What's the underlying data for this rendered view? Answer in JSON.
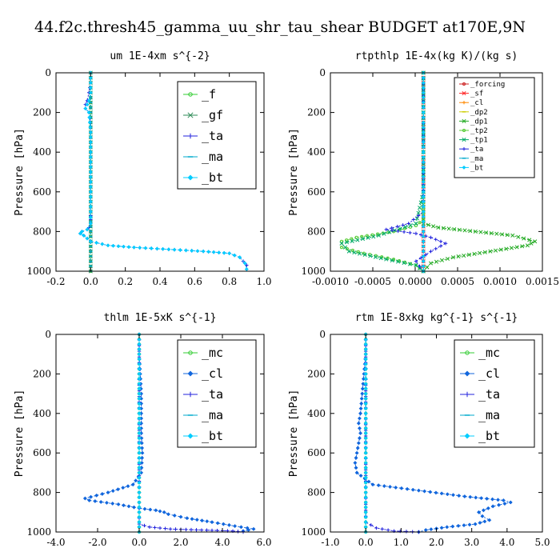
{
  "figure": {
    "title": "44.f2c.thresh45_gamma_uu_shr_tau_shear  BUDGET at170E,9N"
  },
  "chart_data": [
    {
      "type": "line",
      "title": "um   1E-4xm s^{-2}",
      "ylabel": "Pressure [hPa]",
      "xlim": [
        -0.2,
        1.0
      ],
      "ylim": [
        1000,
        0
      ],
      "xticks": [
        "-0.2",
        "0.0",
        "0.2",
        "0.4",
        "0.6",
        "0.8",
        "1.0"
      ],
      "yticks": [
        "0",
        "200",
        "400",
        "600",
        "800",
        "1000"
      ],
      "legend_small": false,
      "series": [
        {
          "name": "_f",
          "color": "#33cc33",
          "marker": "circle",
          "x": [
            0,
            0,
            0,
            0,
            0,
            0,
            0,
            0,
            0,
            0,
            0
          ],
          "y": [
            0,
            100,
            200,
            300,
            400,
            500,
            600,
            700,
            800,
            900,
            1000
          ]
        },
        {
          "name": "_gf",
          "color": "#2e8b57",
          "marker": "x",
          "x": [
            0,
            0,
            0,
            0,
            0,
            0,
            0,
            0,
            0,
            0,
            0
          ],
          "y": [
            0,
            100,
            200,
            300,
            400,
            500,
            600,
            700,
            800,
            900,
            1000
          ]
        },
        {
          "name": "_ta",
          "color": "#2222dd",
          "marker": "plus",
          "x": [
            0,
            0,
            -0.01,
            -0.02,
            -0.03,
            -0.03,
            -0.01,
            0,
            0,
            0,
            0,
            0,
            0,
            0,
            0,
            0,
            0,
            -0.01,
            -0.02,
            -0.05,
            -0.06,
            -0.04,
            0,
            0.1,
            0.25,
            0.45,
            0.65,
            0.8,
            0.86,
            0.88,
            0.9,
            0.9
          ],
          "y": [
            0,
            50,
            100,
            140,
            160,
            180,
            200,
            250,
            300,
            400,
            500,
            600,
            650,
            700,
            720,
            740,
            760,
            780,
            790,
            800,
            810,
            820,
            850,
            870,
            880,
            890,
            900,
            910,
            930,
            950,
            970,
            990
          ]
        },
        {
          "name": "_ma",
          "color": "#00aacc",
          "marker": "dash",
          "x": [
            0,
            0,
            0,
            0,
            0,
            0,
            0,
            0,
            0,
            0,
            0
          ],
          "y": [
            0,
            100,
            200,
            300,
            400,
            500,
            600,
            700,
            800,
            900,
            1000
          ]
        },
        {
          "name": "_bt",
          "color": "#00ccff",
          "marker": "diamond",
          "x": [
            0,
            0,
            0,
            -0.01,
            -0.02,
            -0.03,
            -0.01,
            0,
            0,
            0,
            0,
            0,
            0,
            -0.02,
            -0.05,
            -0.06,
            -0.04,
            0,
            0.1,
            0.25,
            0.45,
            0.65,
            0.8,
            0.86,
            0.89,
            0.9
          ],
          "y": [
            0,
            50,
            100,
            140,
            160,
            180,
            200,
            300,
            400,
            500,
            600,
            700,
            760,
            790,
            800,
            810,
            820,
            850,
            870,
            880,
            890,
            900,
            910,
            930,
            960,
            990
          ]
        }
      ]
    },
    {
      "type": "line",
      "title": "rtpthlp   1E-4x(kg K)/(kg s)",
      "ylabel": "Pressure [hPa]",
      "xlim": [
        -0.00125,
        0.0016
      ],
      "ylim": [
        1000,
        0
      ],
      "xticks": [
        "-0.0010",
        "-0.0005",
        "0.0000",
        "0.0005",
        "0.0010",
        "0.0015"
      ],
      "yticks": [
        "0",
        "200",
        "400",
        "600",
        "800",
        "1000"
      ],
      "legend_small": true,
      "series": [
        {
          "name": "_forcing",
          "color": "#cc2222",
          "marker": "circle",
          "x": [
            0,
            0,
            0,
            0,
            0,
            0,
            0,
            0,
            0,
            0,
            0
          ],
          "y": [
            0,
            100,
            200,
            300,
            400,
            500,
            600,
            700,
            800,
            900,
            1000
          ]
        },
        {
          "name": "_sf",
          "color": "#ff2222",
          "marker": "x",
          "x": [
            0,
            0,
            0,
            0,
            0,
            0,
            0,
            0,
            0,
            0,
            0
          ],
          "y": [
            0,
            100,
            200,
            300,
            400,
            500,
            600,
            700,
            800,
            900,
            1000
          ]
        },
        {
          "name": "_cl",
          "color": "#ff8800",
          "marker": "plus",
          "x": [
            0,
            0,
            0,
            0,
            0,
            0,
            0,
            0,
            0,
            0,
            0
          ],
          "y": [
            0,
            100,
            200,
            300,
            400,
            500,
            600,
            700,
            800,
            900,
            1000
          ]
        },
        {
          "name": "_dp2",
          "color": "#cccc00",
          "marker": "dash",
          "x": [
            0,
            0,
            0,
            0,
            0,
            0,
            0,
            0,
            0,
            0,
            0
          ],
          "y": [
            0,
            100,
            200,
            300,
            400,
            500,
            600,
            700,
            800,
            900,
            1000
          ]
        },
        {
          "name": "_dp1",
          "color": "#22aa22",
          "marker": "x",
          "x": [
            0,
            0,
            0,
            0,
            0,
            0,
            0,
            0.0002,
            0.0007,
            0.0012,
            0.0015,
            0.0014,
            0.0009,
            0.0004,
            0.0001,
            0
          ],
          "y": [
            0,
            200,
            400,
            600,
            700,
            740,
            760,
            780,
            800,
            820,
            850,
            870,
            900,
            930,
            960,
            1000
          ]
        },
        {
          "name": "_tp2",
          "color": "#55cc33",
          "marker": "circle",
          "x": [
            0,
            0,
            0,
            0,
            0,
            -0.0001,
            -0.0004,
            -0.0009,
            -0.0011,
            -0.0011,
            -0.0008,
            -0.0004,
            -0.0001,
            0
          ],
          "y": [
            0,
            200,
            400,
            600,
            740,
            770,
            800,
            830,
            850,
            880,
            910,
            940,
            970,
            1000
          ]
        },
        {
          "name": "_tp1",
          "color": "#00aa66",
          "marker": "x",
          "x": [
            0,
            0,
            0,
            0,
            -0.0001,
            -0.0006,
            -0.0011,
            -0.001,
            -0.0005,
            -0.0001,
            0
          ],
          "y": [
            0,
            200,
            400,
            600,
            760,
            820,
            860,
            900,
            940,
            970,
            1000
          ]
        },
        {
          "name": "_ta",
          "color": "#2222dd",
          "marker": "plus",
          "x": [
            0,
            0,
            0,
            0,
            -0.0002,
            -0.0005,
            -0.0001,
            0.0001,
            0.0003,
            0.0001,
            -0.0001,
            0
          ],
          "y": [
            0,
            200,
            400,
            700,
            760,
            790,
            810,
            830,
            860,
            900,
            950,
            1000
          ]
        },
        {
          "name": "_ma",
          "color": "#00aacc",
          "marker": "dash",
          "x": [
            0,
            0,
            0,
            0,
            0,
            0,
            0,
            0,
            0,
            0,
            0
          ],
          "y": [
            0,
            100,
            200,
            300,
            400,
            500,
            600,
            700,
            800,
            900,
            1000
          ]
        },
        {
          "name": "_bt",
          "color": "#00ccff",
          "marker": "diamond",
          "x": [
            0,
            0,
            0,
            0,
            0,
            0,
            0,
            0,
            0,
            0,
            0
          ],
          "y": [
            0,
            100,
            200,
            300,
            400,
            500,
            600,
            700,
            800,
            900,
            1000
          ]
        }
      ]
    },
    {
      "type": "line",
      "title": "thlm   1E-5xK s^{-1}",
      "ylabel": "Pressure [hPa]",
      "xlim": [
        -4.0,
        6.0
      ],
      "ylim": [
        1000,
        0
      ],
      "xticks": [
        "-4.0",
        "-2.0",
        "0.0",
        "2.0",
        "4.0",
        "6.0"
      ],
      "yticks": [
        "0",
        "200",
        "400",
        "600",
        "800",
        "1000"
      ],
      "legend_small": false,
      "series": [
        {
          "name": "_mc",
          "color": "#33cc33",
          "marker": "circle",
          "x": [
            0,
            0,
            0,
            0,
            0,
            0,
            0,
            0,
            0,
            0,
            0
          ],
          "y": [
            0,
            100,
            200,
            300,
            400,
            500,
            600,
            700,
            800,
            900,
            1000
          ]
        },
        {
          "name": "_cl",
          "color": "#1166dd",
          "marker": "diamond",
          "x": [
            0,
            0,
            0.05,
            0.1,
            0.1,
            0.1,
            0.15,
            0.1,
            -0.3,
            -1.5,
            -2.6,
            -2.4,
            -1.0,
            0,
            0.8,
            1.2,
            1.4,
            2.3,
            3.5,
            4.6,
            5.5,
            5.0
          ],
          "y": [
            0,
            100,
            200,
            300,
            400,
            500,
            600,
            700,
            760,
            800,
            830,
            840,
            860,
            880,
            890,
            900,
            910,
            930,
            950,
            970,
            985,
            995
          ]
        },
        {
          "name": "_ta",
          "color": "#2222dd",
          "marker": "plus",
          "x": [
            0,
            0,
            0,
            0,
            0,
            0,
            0,
            0.5,
            1.5,
            3.0,
            4.5,
            5.0
          ],
          "y": [
            0,
            200,
            400,
            600,
            800,
            900,
            960,
            975,
            985,
            990,
            995,
            1000
          ]
        },
        {
          "name": "_ma",
          "color": "#00aacc",
          "marker": "dash",
          "x": [
            0,
            0,
            0,
            0,
            0,
            0,
            0,
            0,
            0,
            0,
            0
          ],
          "y": [
            0,
            100,
            200,
            300,
            400,
            500,
            600,
            700,
            800,
            900,
            1000
          ]
        },
        {
          "name": "_bt",
          "color": "#00ccff",
          "marker": "diamond",
          "x": [
            0,
            0,
            0,
            0,
            0,
            0,
            0,
            0,
            0,
            0,
            0
          ],
          "y": [
            0,
            100,
            200,
            300,
            400,
            500,
            600,
            700,
            800,
            900,
            1000
          ]
        }
      ]
    },
    {
      "type": "line",
      "title": "rtm   1E-8xkg kg^{-1} s^{-1}",
      "ylabel": "Pressure [hPa]",
      "xlim": [
        -1.0,
        5.0
      ],
      "ylim": [
        1000,
        0
      ],
      "xticks": [
        "-1.0",
        "0.0",
        "1.0",
        "2.0",
        "3.0",
        "4.0",
        "5.0"
      ],
      "yticks": [
        "0",
        "200",
        "400",
        "600",
        "800",
        "1000"
      ],
      "legend_small": false,
      "series": [
        {
          "name": "_mc",
          "color": "#33cc33",
          "marker": "circle",
          "x": [
            0,
            0,
            0,
            0,
            0,
            0,
            0,
            0,
            0,
            0,
            0
          ],
          "y": [
            0,
            100,
            200,
            300,
            400,
            500,
            600,
            700,
            800,
            900,
            1000
          ]
        },
        {
          "name": "_cl",
          "color": "#1166dd",
          "marker": "diamond",
          "x": [
            0,
            0,
            -0.05,
            -0.1,
            -0.15,
            -0.2,
            -0.15,
            -0.2,
            -0.25,
            -0.3,
            -0.25,
            0.2,
            1.5,
            2.8,
            3.9,
            4.1,
            3.6,
            3.2,
            3.3,
            3.5,
            3.1,
            2.3,
            1.7,
            1.5
          ],
          "y": [
            0,
            100,
            200,
            300,
            400,
            450,
            500,
            550,
            600,
            650,
            700,
            760,
            790,
            820,
            840,
            850,
            870,
            900,
            920,
            940,
            960,
            975,
            990,
            1000
          ]
        },
        {
          "name": "_ta",
          "color": "#2222dd",
          "marker": "plus",
          "x": [
            0,
            0,
            0,
            0,
            0,
            0,
            0.3,
            0.8,
            1.5
          ],
          "y": [
            0,
            200,
            400,
            600,
            800,
            950,
            980,
            995,
            1000
          ]
        },
        {
          "name": "_ma",
          "color": "#00aacc",
          "marker": "dash",
          "x": [
            0,
            0,
            0,
            0,
            0,
            0,
            0,
            0,
            0,
            0,
            0
          ],
          "y": [
            0,
            100,
            200,
            300,
            400,
            500,
            600,
            700,
            800,
            900,
            1000
          ]
        },
        {
          "name": "_bt",
          "color": "#00ccff",
          "marker": "diamond",
          "x": [
            0,
            0,
            0,
            0,
            0,
            0,
            0,
            0,
            0,
            0,
            0
          ],
          "y": [
            0,
            100,
            200,
            300,
            400,
            500,
            600,
            700,
            800,
            900,
            1000
          ]
        }
      ]
    }
  ]
}
